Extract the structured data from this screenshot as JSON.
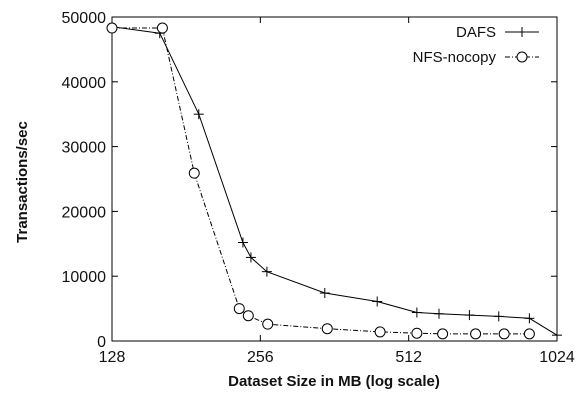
{
  "chart_data": {
    "type": "line",
    "xlabel": "Dataset Size in MB (log scale)",
    "ylabel": "Transactions/sec",
    "x_scale": "log2",
    "xlim": [
      128,
      1024
    ],
    "ylim": [
      0,
      50000
    ],
    "x_ticks": [
      128,
      256,
      512,
      1024
    ],
    "x_tick_labels": [
      "128",
      "256",
      "512",
      "1024"
    ],
    "y_ticks": [
      0,
      10000,
      20000,
      30000,
      40000,
      50000
    ],
    "y_tick_labels": [
      "0",
      "10000",
      "20000",
      "30000",
      "40000",
      "50000"
    ],
    "legend_position": "top-right",
    "series": [
      {
        "name": "DAFS",
        "line_style": "solid",
        "marker": "plus",
        "points": [
          [
            128,
            48500
          ],
          [
            160,
            47500
          ],
          [
            192,
            35000
          ],
          [
            236,
            15200
          ],
          [
            245,
            12900
          ],
          [
            264,
            10700
          ],
          [
            346,
            7400
          ],
          [
            442,
            6100
          ],
          [
            532,
            4400
          ],
          [
            590,
            4200
          ],
          [
            680,
            4000
          ],
          [
            780,
            3800
          ],
          [
            900,
            3500
          ],
          [
            1024,
            900
          ]
        ]
      },
      {
        "name": "NFS-nocopy",
        "line_style": "dash-dot",
        "marker": "circle",
        "points": [
          [
            128,
            48300
          ],
          [
            162,
            48300
          ],
          [
            188,
            25900
          ],
          [
            232,
            5000
          ],
          [
            242,
            3900
          ],
          [
            265,
            2600
          ],
          [
            350,
            1900
          ],
          [
            448,
            1400
          ],
          [
            532,
            1200
          ],
          [
            600,
            1100
          ],
          [
            700,
            1100
          ],
          [
            800,
            1100
          ],
          [
            900,
            1100
          ]
        ]
      }
    ]
  }
}
